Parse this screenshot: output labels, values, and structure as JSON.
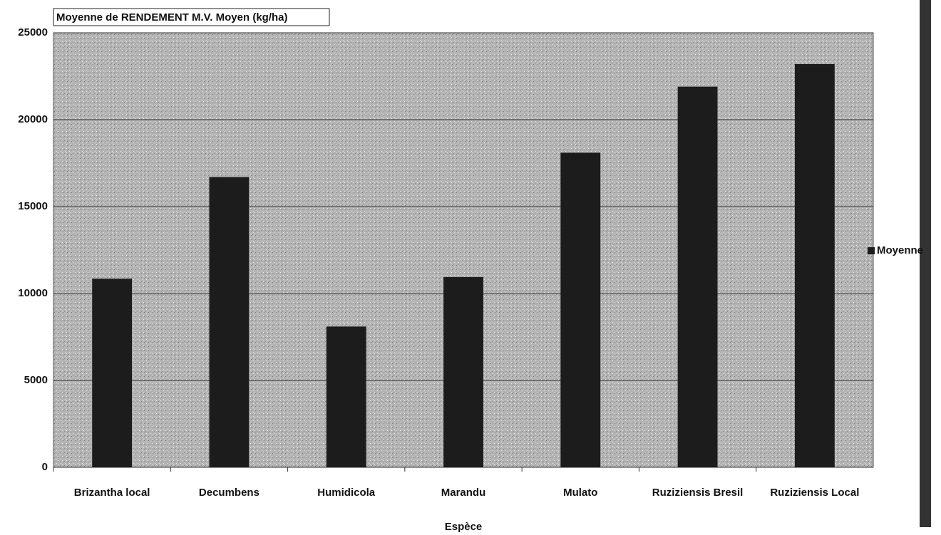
{
  "chart_data": {
    "type": "bar",
    "title": "Moyenne de RENDEMENT M.V. Moyen (kg/ha)",
    "x_label": "Espèce",
    "categories": [
      "Brizantha local",
      "Decumbens",
      "Humidicola",
      "Marandu",
      "Mulato",
      "Ruziziensis Bresil",
      "Ruziziensis Local"
    ],
    "series": [
      {
        "name": "Moyenne",
        "color": "#1c1c1c",
        "values": [
          10850,
          16700,
          8100,
          10950,
          18100,
          21900,
          23200
        ]
      }
    ],
    "ylim": [
      0,
      25000
    ],
    "yticks": [
      0,
      5000,
      10000,
      15000,
      20000,
      25000
    ],
    "grid": true,
    "legend": "right"
  }
}
